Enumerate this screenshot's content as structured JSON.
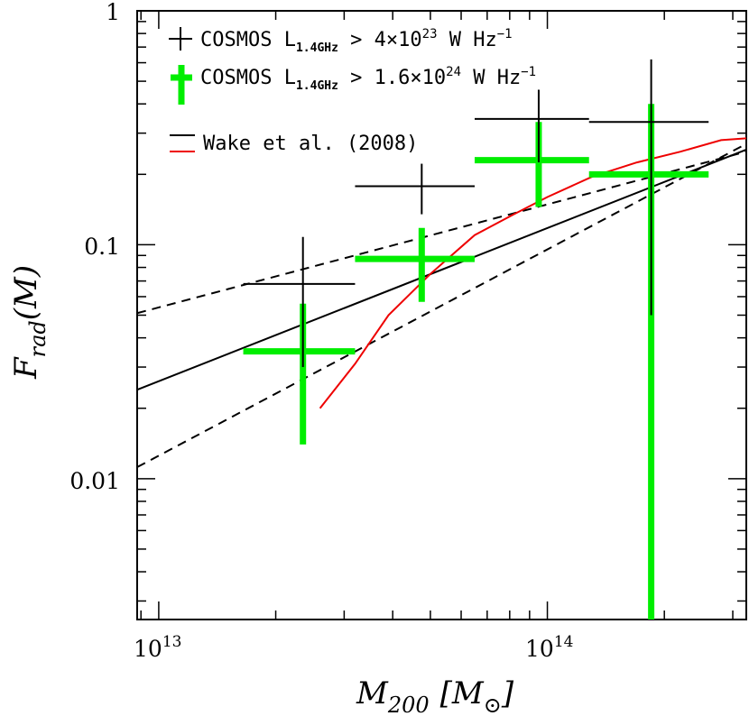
{
  "chart_data": {
    "type": "scatter",
    "xscale": "log",
    "yscale": "log",
    "xlim": [
      8800000000000.0,
      325000000000000.0
    ],
    "ylim": [
      0.0025,
      1.0
    ],
    "ylabel": "F",
    "ylabel_sub": "rad",
    "ylabel_tail": "(M)",
    "xlabel": "M",
    "xlabel_sub": "200",
    "xlabel_tail": "[M",
    "xlabel_sun": "⊙",
    "xlabel_close": "]",
    "x_ticks": [
      {
        "base": "10",
        "exp": "13",
        "value": 10000000000000.0
      },
      {
        "base": "10",
        "exp": "14",
        "value": 100000000000000.0
      }
    ],
    "y_ticks": [
      {
        "label": "1",
        "value": 1.0
      },
      {
        "label": "0.1",
        "value": 0.1
      },
      {
        "label": "0.01",
        "value": 0.01
      }
    ],
    "legend": {
      "series1": {
        "prefix": "COSMOS L",
        "sub": "1.4GHz",
        "mid": " > 4×10",
        "exp": "23",
        "unit": " W Hz",
        "unit_exp": "−1"
      },
      "series2": {
        "prefix": "COSMOS L",
        "sub": "1.4GHz",
        "mid": " > 1.6×10",
        "exp": "24",
        "unit": " W Hz",
        "unit_exp": "−1"
      },
      "wake": "Wake et al. (2008)"
    },
    "series": [
      {
        "name": "COSMOS L1.4GHz > 4×10^23 W Hz^-1",
        "color": "#000000",
        "points": [
          {
            "x": 23500000000000.0,
            "y": 0.068,
            "xlo": 16500000000000.0,
            "xhi": 32000000000000.0,
            "ylo": 0.03,
            "yhi": 0.108
          },
          {
            "x": 47500000000000.0,
            "y": 0.178,
            "xlo": 32000000000000.0,
            "xhi": 65000000000000.0,
            "ylo": 0.135,
            "yhi": 0.222
          },
          {
            "x": 95000000000000.0,
            "y": 0.345,
            "xlo": 65000000000000.0,
            "xhi": 128000000000000.0,
            "ylo": 0.225,
            "yhi": 0.46
          },
          {
            "x": 185000000000000.0,
            "y": 0.335,
            "xlo": 128000000000000.0,
            "xhi": 260000000000000.0,
            "ylo": 0.05,
            "yhi": 0.62
          }
        ]
      },
      {
        "name": "COSMOS L1.4GHz > 1.6×10^24 W Hz^-1",
        "color": "#00ee00",
        "points": [
          {
            "x": 23500000000000.0,
            "y": 0.035,
            "xlo": 16500000000000.0,
            "xhi": 32000000000000.0,
            "ylo": 0.014,
            "yhi": 0.056
          },
          {
            "x": 47500000000000.0,
            "y": 0.087,
            "xlo": 32000000000000.0,
            "xhi": 65000000000000.0,
            "ylo": 0.057,
            "yhi": 0.118
          },
          {
            "x": 95000000000000.0,
            "y": 0.23,
            "xlo": 65000000000000.0,
            "xhi": 128000000000000.0,
            "ylo": 0.145,
            "yhi": 0.335
          },
          {
            "x": 185000000000000.0,
            "y": 0.2,
            "xlo": 128000000000000.0,
            "xhi": 260000000000000.0,
            "ylo": 0.0025,
            "yhi": 0.4
          }
        ]
      }
    ],
    "fits": [
      {
        "name": "fit",
        "style": "solid",
        "color": "#000000",
        "x": [
          8800000000000.0,
          325000000000000.0
        ],
        "y": [
          0.024,
          0.255
        ]
      },
      {
        "name": "fit-upper",
        "style": "dashed",
        "color": "#000000",
        "x": [
          8800000000000.0,
          325000000000000.0
        ],
        "y": [
          0.051,
          0.25
        ]
      },
      {
        "name": "fit-lower",
        "style": "dashed",
        "color": "#000000",
        "x": [
          8800000000000.0,
          325000000000000.0
        ],
        "y": [
          0.0112,
          0.27
        ]
      }
    ],
    "wake_curve": {
      "name": "Wake et al. (2008)",
      "color": "#ee0000",
      "x": [
        26000000000000.0,
        32000000000000.0,
        39000000000000.0,
        50000000000000.0,
        65000000000000.0,
        82000000000000.0,
        100000000000000.0,
        130000000000000.0,
        170000000000000.0,
        220000000000000.0,
        280000000000000.0,
        325000000000000.0
      ],
      "y": [
        0.02,
        0.031,
        0.05,
        0.075,
        0.11,
        0.135,
        0.16,
        0.195,
        0.225,
        0.25,
        0.28,
        0.285
      ]
    }
  }
}
